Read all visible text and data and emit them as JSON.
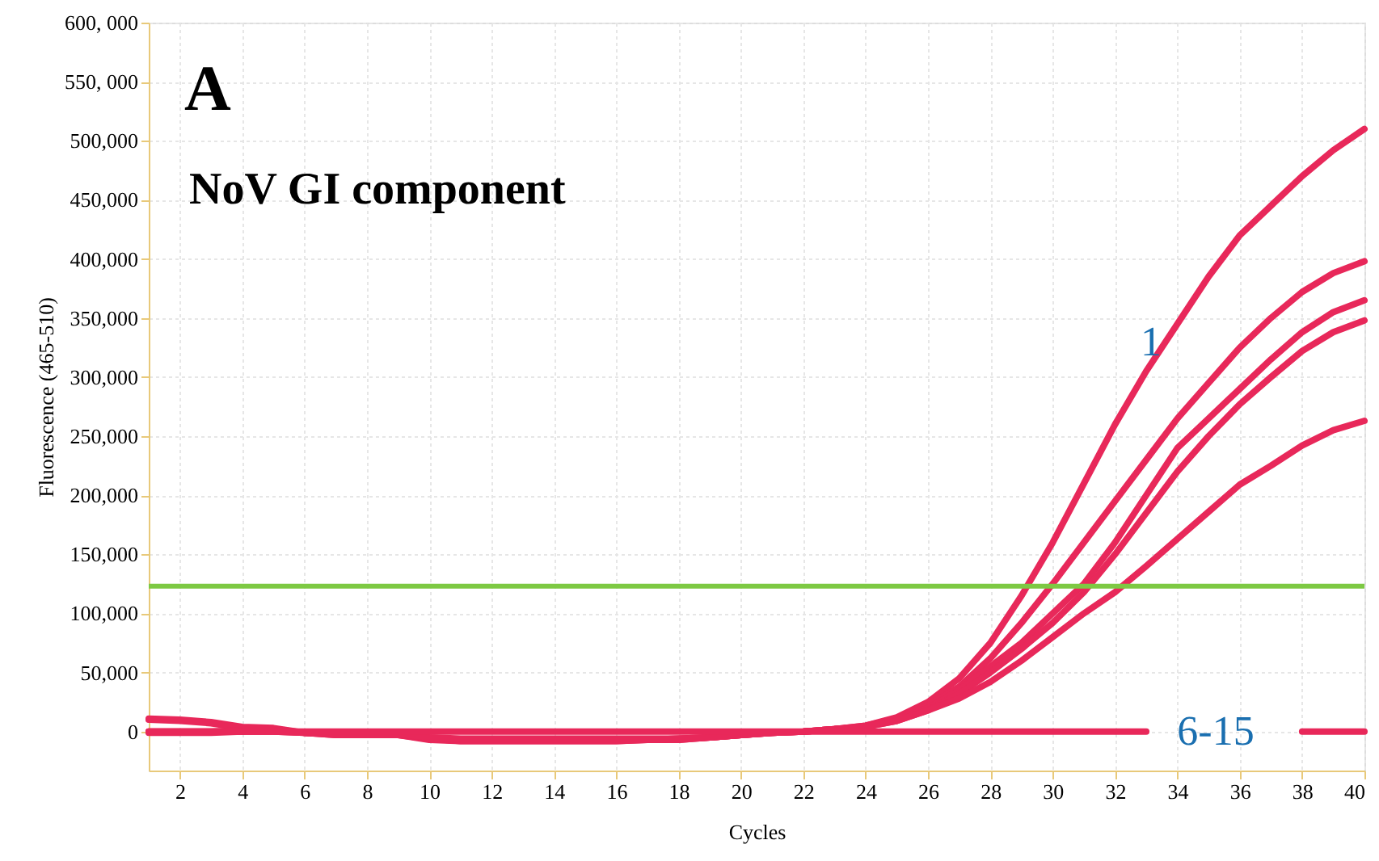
{
  "chart_data": {
    "type": "line",
    "title": "A",
    "subtitle": "NoV GI component",
    "xlabel": "Cycles",
    "ylabel": "Fluorescence (465-510)",
    "x": [
      1,
      2,
      3,
      4,
      5,
      6,
      7,
      8,
      9,
      10,
      11,
      12,
      13,
      14,
      15,
      16,
      17,
      18,
      19,
      20,
      21,
      22,
      23,
      24,
      25,
      26,
      27,
      28,
      29,
      30,
      31,
      32,
      33,
      34,
      35,
      36,
      37,
      38,
      39,
      40
    ],
    "series": [
      {
        "color": "#e8285a",
        "values": [
          11000,
          10000,
          8000,
          4000,
          3000,
          -1000,
          -3000,
          -3000,
          -3000,
          -7000,
          -8000,
          -8000,
          -8000,
          -8000,
          -8000,
          -8000,
          -7000,
          -7000,
          -5000,
          -3000,
          -1000,
          0,
          2000,
          5000,
          12000,
          25000,
          45000,
          75000,
          115000,
          160000,
          210000,
          260000,
          305000,
          345000,
          385000,
          420000,
          445000,
          470000,
          492000,
          510000
        ]
      },
      {
        "color": "#e8285a",
        "values": [
          10000,
          9000,
          7000,
          3000,
          2000,
          -1000,
          -3000,
          -3000,
          -3000,
          -6000,
          -8000,
          -8000,
          -8000,
          -8000,
          -8000,
          -8000,
          -7000,
          -7000,
          -5000,
          -3000,
          -1000,
          0,
          2000,
          5000,
          11000,
          22000,
          38000,
          62000,
          92000,
          125000,
          160000,
          195000,
          230000,
          265000,
          295000,
          325000,
          350000,
          372000,
          388000,
          398000
        ]
      },
      {
        "color": "#e8285a",
        "values": [
          0,
          0,
          0,
          1000,
          1000,
          -1000,
          -2000,
          -2000,
          -2000,
          -6000,
          -7000,
          -7000,
          -7000,
          -7000,
          -7000,
          -7000,
          -7000,
          -6000,
          -5000,
          -3000,
          -1000,
          0,
          2000,
          4000,
          10000,
          20000,
          35000,
          55000,
          75000,
          100000,
          125000,
          160000,
          200000,
          240000,
          265000,
          290000,
          315000,
          338000,
          355000,
          365000
        ]
      },
      {
        "color": "#e8285a",
        "values": [
          0,
          0,
          0,
          0,
          0,
          -1000,
          -2000,
          -2000,
          -2000,
          -5000,
          -7000,
          -7000,
          -7000,
          -7000,
          -7000,
          -7000,
          -7000,
          -6000,
          -5000,
          -3000,
          -1000,
          0,
          2000,
          4000,
          9000,
          18000,
          32000,
          50000,
          70000,
          92000,
          118000,
          150000,
          185000,
          220000,
          250000,
          277000,
          300000,
          322000,
          338000,
          348000
        ]
      },
      {
        "color": "#e8285a",
        "values": [
          -1000,
          -1000,
          -1000,
          0,
          0,
          -1000,
          -2000,
          -2000,
          -2000,
          -5000,
          -6000,
          -6000,
          -6000,
          -6000,
          -6000,
          -6000,
          -6000,
          -6000,
          -5000,
          -3000,
          -1000,
          0,
          2000,
          4000,
          9000,
          18000,
          28000,
          42000,
          60000,
          80000,
          100000,
          118000,
          140000,
          163000,
          186000,
          209000,
          225000,
          242000,
          255000,
          263000
        ]
      },
      {
        "color": "#e8285a",
        "values": [
          0,
          0,
          0,
          0,
          0,
          0,
          0,
          0,
          0,
          0,
          0,
          0,
          0,
          0,
          0,
          0,
          0,
          0,
          0,
          0,
          0,
          0,
          0,
          0,
          0,
          0,
          0,
          0,
          0,
          0,
          0,
          0,
          0,
          null,
          null,
          null,
          null,
          0,
          0,
          0
        ]
      }
    ],
    "xlim": [
      1,
      40
    ],
    "xticks": [
      2,
      4,
      6,
      8,
      10,
      12,
      14,
      16,
      18,
      20,
      22,
      24,
      26,
      28,
      30,
      32,
      34,
      36,
      38,
      40
    ],
    "ylim": [
      -33000,
      600000
    ],
    "yticks": [
      0,
      {
        "value": 50000,
        "label": "50,000"
      },
      {
        "value": 100000,
        "label": "100,000"
      },
      {
        "value": 150000,
        "label": "150,000"
      },
      {
        "value": 200000,
        "label": "200,000"
      },
      {
        "value": 250000,
        "label": "250,000"
      },
      {
        "value": 300000,
        "label": "300,000"
      },
      {
        "value": 350000,
        "label": "350,000"
      },
      {
        "value": 400000,
        "label": "400,000"
      },
      {
        "value": 450000,
        "label": "450,000"
      },
      {
        "value": 500000,
        "label": "500,000"
      },
      {
        "value": 550000,
        "label": "550, 000"
      },
      {
        "value": 600000,
        "label": "600, 000"
      }
    ],
    "ref_lines": [
      {
        "axis": "y",
        "value": 123000,
        "color": "#7dc943"
      }
    ],
    "annotations": [
      "1",
      "6-15"
    ],
    "grid": true,
    "marker": "none",
    "line_style": "solid"
  }
}
